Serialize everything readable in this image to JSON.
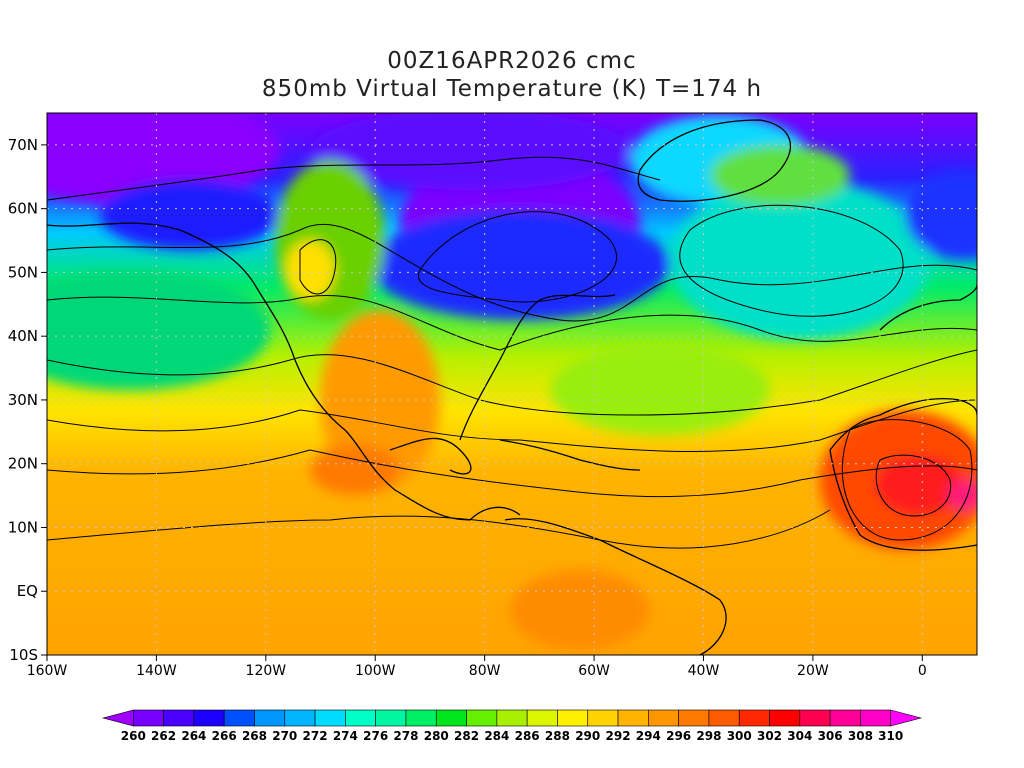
{
  "title": {
    "line1": "00Z16APR2026 cmc",
    "line2": "850mb Virtual Temperature (K) T=174 h"
  },
  "map": {
    "lon_range": [
      -160,
      10
    ],
    "lat_range": [
      -10,
      75
    ],
    "lat_labels": [
      "70N",
      "60N",
      "50N",
      "40N",
      "30N",
      "20N",
      "10N",
      "EQ",
      "10S"
    ],
    "lat_values": [
      70,
      60,
      50,
      40,
      30,
      20,
      10,
      0,
      -10
    ],
    "lon_labels": [
      "160W",
      "140W",
      "120W",
      "100W",
      "80W",
      "60W",
      "40W",
      "20W",
      "0"
    ],
    "lon_values": [
      -160,
      -140,
      -120,
      -100,
      -80,
      -60,
      -40,
      -20,
      0
    ],
    "grid": "dotted"
  },
  "colorbar": {
    "labels": [
      "260",
      "262",
      "264",
      "266",
      "268",
      "270",
      "272",
      "274",
      "276",
      "278",
      "280",
      "282",
      "284",
      "286",
      "288",
      "290",
      "292",
      "294",
      "296",
      "298",
      "300",
      "302",
      "304",
      "306",
      "308",
      "310"
    ],
    "colors": [
      "#a000ff",
      "#7800ff",
      "#4b00ff",
      "#1e00ff",
      "#0050ff",
      "#0096ff",
      "#00b4ff",
      "#00dcff",
      "#00ffc8",
      "#00f5a0",
      "#00f064",
      "#00e61e",
      "#64f000",
      "#a8f000",
      "#dcf500",
      "#fff000",
      "#ffd200",
      "#ffb400",
      "#ff9600",
      "#ff7800",
      "#ff5a00",
      "#ff2800",
      "#ff0000",
      "#ff0050",
      "#ff0096",
      "#ff00c8",
      "#ff00ff"
    ]
  }
}
